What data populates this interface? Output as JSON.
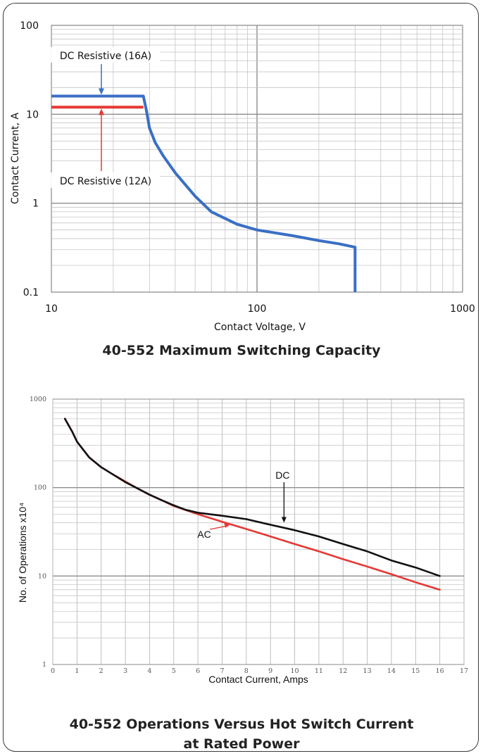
{
  "captions": {
    "chart1": "40-552 Maximum Switching Capacity",
    "chart2_line1": "40-552 Operations Versus Hot Switch Current",
    "chart2_line2": "at Rated Power"
  },
  "chart_data": [
    {
      "type": "line",
      "title": "40-552 Maximum Switching Capacity",
      "xlabel": "Contact Voltage, V",
      "ylabel": "Contact Current, A",
      "xscale": "log",
      "yscale": "log",
      "xlim": [
        10,
        1000
      ],
      "ylim": [
        0.1,
        100
      ],
      "x_ticks": [
        "10",
        "100",
        "1000"
      ],
      "y_ticks": [
        "0.1",
        "1",
        "10",
        "100"
      ],
      "grid": true,
      "series": [
        {
          "name": "DC Resistive (16A)",
          "color": "#3a6fc4",
          "x": [
            10,
            28,
            29,
            30,
            32,
            35,
            40,
            50,
            60,
            80,
            100,
            150,
            200,
            250,
            300,
            300
          ],
          "y": [
            16,
            16,
            11,
            7,
            4.8,
            3.4,
            2.2,
            1.2,
            0.8,
            0.58,
            0.5,
            0.43,
            0.38,
            0.35,
            0.32,
            0.1
          ]
        },
        {
          "name": "DC Resistive (12A)",
          "color": "#e53935",
          "x": [
            10,
            28
          ],
          "y": [
            12,
            12
          ]
        }
      ],
      "annotations": [
        {
          "text": "DC Resistive (16A)",
          "arrow_to": [
            17.5,
            16
          ]
        },
        {
          "text": "DC Resistive (12A)",
          "arrow_to": [
            17.5,
            12
          ]
        }
      ]
    },
    {
      "type": "line",
      "title": "40-552 Operations Versus Hot Switch Current at Rated Power",
      "xlabel": "Contact Current, Amps",
      "ylabel": "No. of Operations x10⁴",
      "xlim": [
        0,
        17
      ],
      "ylim": [
        1,
        1000
      ],
      "yscale": "log",
      "x_ticks": [
        "0",
        "1",
        "2",
        "3",
        "4",
        "5",
        "6",
        "7",
        "8",
        "9",
        "10",
        "11",
        "12",
        "13",
        "14",
        "15",
        "16",
        "17"
      ],
      "y_ticks": [
        "1",
        "10",
        "100",
        "1000"
      ],
      "grid": true,
      "series": [
        {
          "name": "DC",
          "color": "#111111",
          "x": [
            0.5,
            0.8,
            1,
            1.5,
            2,
            2.5,
            3,
            3.5,
            4,
            4.5,
            5,
            5.5,
            6,
            7,
            8,
            9,
            10,
            11,
            12,
            13,
            14,
            15,
            16
          ],
          "y": [
            600,
            430,
            330,
            220,
            170,
            140,
            115,
            98,
            83,
            72,
            63,
            56,
            52,
            48,
            44,
            38,
            33,
            28,
            23,
            19,
            15,
            12.5,
            10
          ]
        },
        {
          "name": "AC",
          "color": "#e53935",
          "x": [
            0.5,
            0.8,
            1,
            1.5,
            2,
            2.5,
            3,
            3.5,
            4,
            4.5,
            5,
            6,
            7,
            8,
            9,
            10,
            11,
            12,
            13,
            14,
            15,
            16
          ],
          "y": [
            600,
            430,
            330,
            220,
            170,
            140,
            117,
            98,
            83,
            72,
            62,
            50,
            41,
            34,
            28,
            23,
            19,
            15.5,
            12.8,
            10.5,
            8.5,
            7
          ]
        }
      ],
      "annotations": [
        {
          "text": "DC",
          "arrow_to": [
            9.5,
            38
          ]
        },
        {
          "text": "AC",
          "arrow_to": [
            7.3,
            43
          ]
        }
      ]
    }
  ]
}
